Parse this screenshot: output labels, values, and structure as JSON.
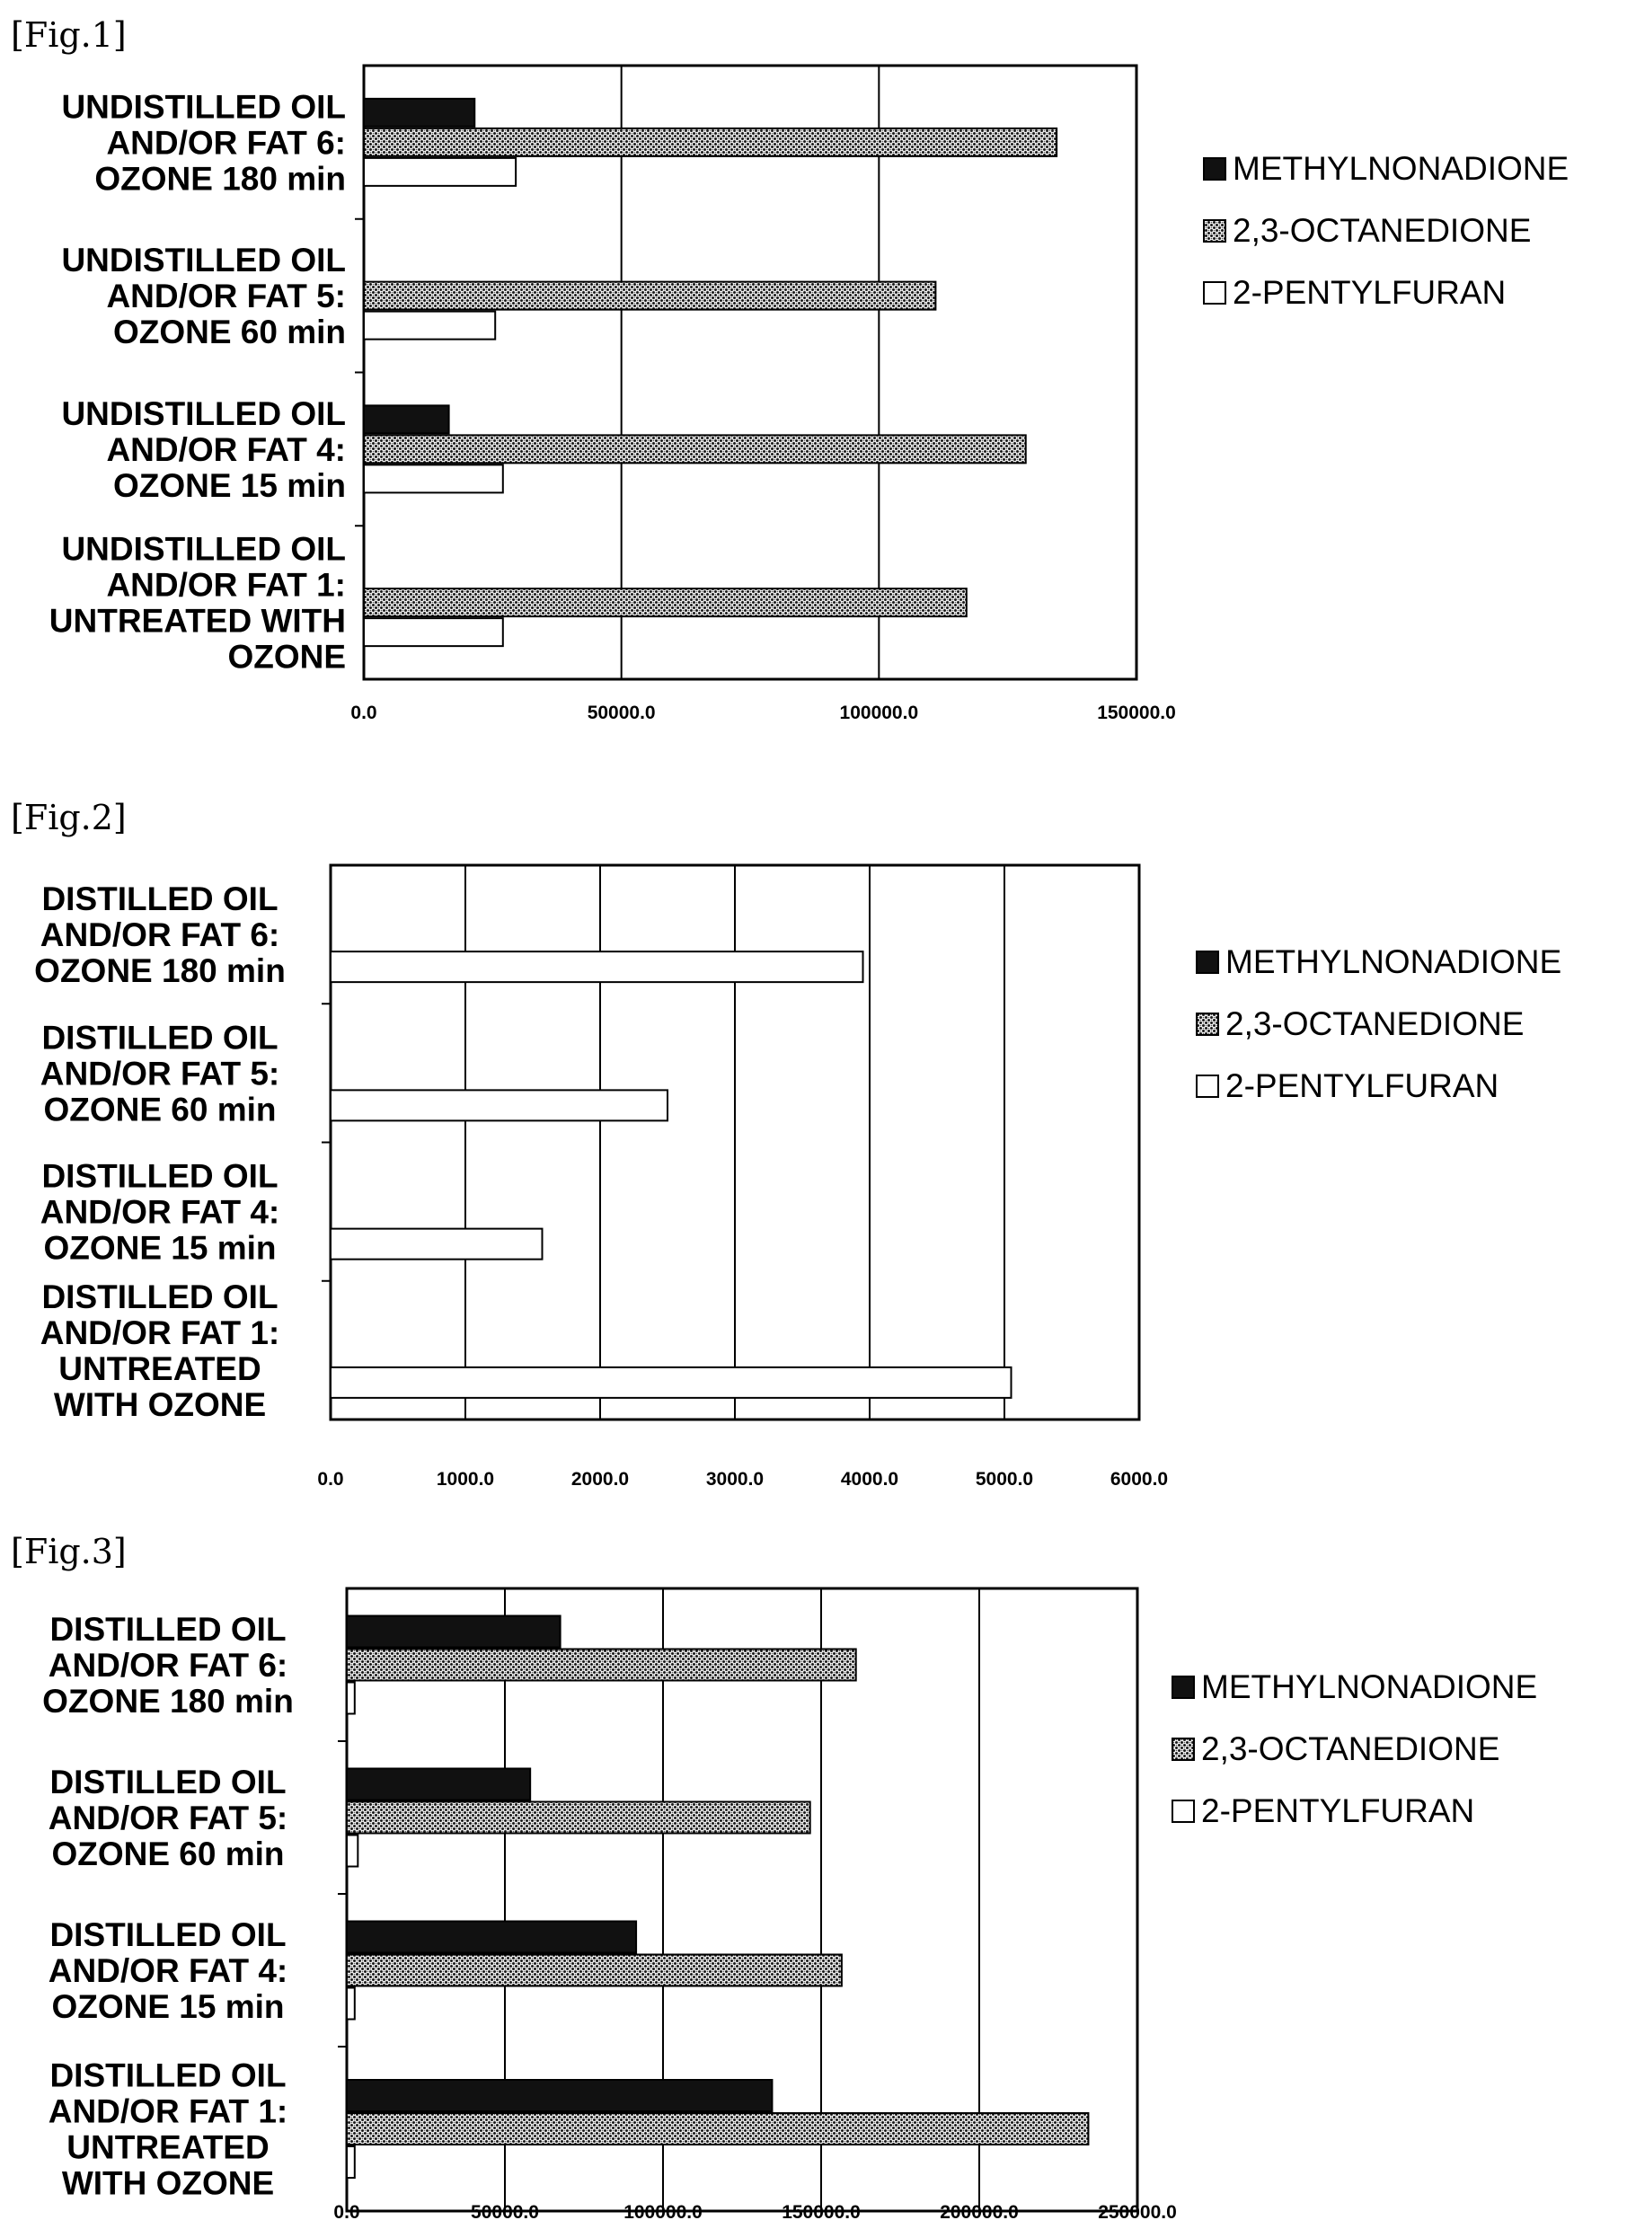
{
  "series_names": [
    "METHYLNONADIONE",
    "2,3-OCTANEDIONE",
    "2-PENTYLFURAN"
  ],
  "chart_data": [
    {
      "type": "bar",
      "orientation": "horizontal",
      "figure_label": "[Fig.1]",
      "categories": [
        [
          "UNDISTILLED OIL",
          "AND/OR FAT 6:",
          "OZONE 180 min"
        ],
        [
          "UNDISTILLED OIL",
          "AND/OR FAT 5:",
          "OZONE 60 min"
        ],
        [
          "UNDISTILLED OIL",
          "AND/OR FAT 4:",
          "OZONE 15 min"
        ],
        [
          "UNDISTILLED OIL",
          "AND/OR FAT 1:",
          "UNTREATED WITH",
          "OZONE"
        ]
      ],
      "series": [
        {
          "name": "METHYLNONADIONE",
          "values": [
            21500,
            0,
            16500,
            0
          ]
        },
        {
          "name": "2,3-OCTANEDIONE",
          "values": [
            134500,
            111000,
            128500,
            117000
          ]
        },
        {
          "name": "2-PENTYLFURAN",
          "values": [
            29500,
            25500,
            27000,
            27000
          ]
        }
      ],
      "xlim": [
        0,
        150000
      ],
      "xticks": [
        "0.0",
        "50000.0",
        "100000.0",
        "150000.0"
      ],
      "grid": true,
      "legend_position": "right"
    },
    {
      "type": "bar",
      "orientation": "horizontal",
      "figure_label": "[Fig.2]",
      "categories": [
        [
          "DISTILLED OIL",
          "AND/OR FAT 6:",
          "OZONE 180 min"
        ],
        [
          "DISTILLED OIL",
          "AND/OR FAT 5:",
          "OZONE 60 min"
        ],
        [
          "DISTILLED OIL",
          "AND/OR FAT 4:",
          "OZONE 15 min"
        ],
        [
          "DISTILLED OIL",
          "AND/OR FAT 1:",
          "UNTREATED",
          "WITH OZONE"
        ]
      ],
      "series": [
        {
          "name": "METHYLNONADIONE",
          "values": [
            0,
            0,
            0,
            0
          ]
        },
        {
          "name": "2,3-OCTANEDIONE",
          "values": [
            0,
            0,
            0,
            0
          ]
        },
        {
          "name": "2-PENTYLFURAN",
          "values": [
            3950,
            2500,
            1570,
            5050
          ]
        }
      ],
      "xlim": [
        0,
        6000
      ],
      "xticks": [
        "0.0",
        "1000.0",
        "2000.0",
        "3000.0",
        "4000.0",
        "5000.0",
        "6000.0"
      ],
      "grid": true,
      "legend_position": "right"
    },
    {
      "type": "bar",
      "orientation": "horizontal",
      "figure_label": "[Fig.3]",
      "categories": [
        [
          "DISTILLED OIL",
          "AND/OR FAT 6:",
          "OZONE 180 min"
        ],
        [
          "DISTILLED OIL",
          "AND/OR FAT 5:",
          "OZONE 60 min"
        ],
        [
          "DISTILLED OIL",
          "AND/OR FAT 4:",
          "OZONE 15 min"
        ],
        [
          "DISTILLED OIL",
          "AND/OR FAT 1:",
          "UNTREATED",
          "WITH OZONE"
        ]
      ],
      "series": [
        {
          "name": "METHYLNONADIONE",
          "values": [
            67500,
            58000,
            91500,
            134500
          ]
        },
        {
          "name": "2,3-OCTANEDIONE",
          "values": [
            161000,
            146500,
            156500,
            234500
          ]
        },
        {
          "name": "2-PENTYLFURAN",
          "values": [
            2500,
            3500,
            2500,
            2500
          ]
        }
      ],
      "xlim": [
        0,
        250000
      ],
      "xticks": [
        "0.0",
        "50000.0",
        "100000.0",
        "150000.0",
        "200000.0",
        "250000.0"
      ],
      "grid": true,
      "legend_position": "right"
    }
  ]
}
